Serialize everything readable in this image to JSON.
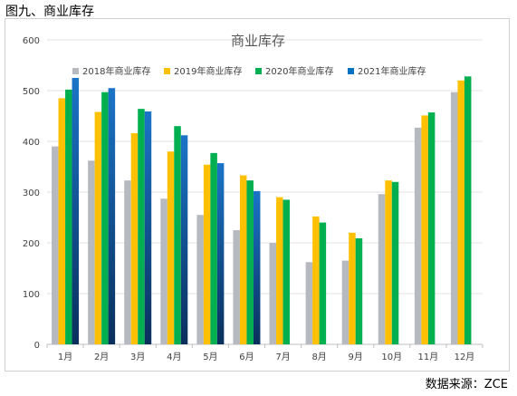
{
  "figure": {
    "caption": "图九、商业库存",
    "source": "数据来源：ZCE"
  },
  "chart_data": {
    "type": "bar",
    "title": "商业库存",
    "xlabel": "",
    "ylabel": "",
    "ylim": [
      0,
      600
    ],
    "yticks": [
      "0",
      "100",
      "200",
      "300",
      "400",
      "500",
      "600"
    ],
    "grid": true,
    "legend_position": "top",
    "categories": [
      "1月",
      "2月",
      "3月",
      "4月",
      "5月",
      "6月",
      "7月",
      "8月",
      "9月",
      "10月",
      "11月",
      "12月"
    ],
    "series": [
      {
        "name": "2018年商业库存",
        "color": "#b7b9c1",
        "values": [
          390,
          362,
          323,
          287,
          255,
          225,
          200,
          162,
          165,
          296,
          427,
          497
        ]
      },
      {
        "name": "2019年商业库存",
        "color": "#ffc000",
        "values": [
          485,
          458,
          416,
          380,
          354,
          333,
          290,
          252,
          220,
          323,
          451,
          520
        ]
      },
      {
        "name": "2020年商业库存",
        "color": "#00b050",
        "values": [
          502,
          497,
          464,
          430,
          377,
          323,
          285,
          240,
          209,
          320,
          457,
          528
        ]
      },
      {
        "name": "2021年商业库存",
        "color": "#0070c0",
        "values": [
          525,
          505,
          459,
          412,
          357,
          302,
          null,
          null,
          null,
          null,
          null,
          null
        ]
      }
    ]
  }
}
